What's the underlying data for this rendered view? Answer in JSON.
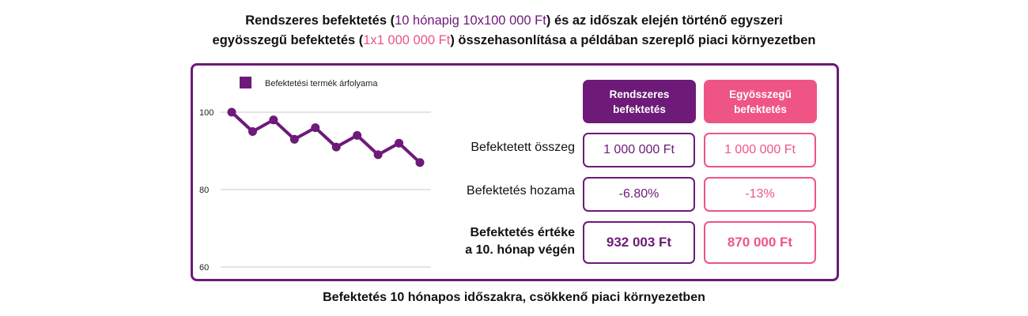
{
  "title": {
    "l1_a": "Rendszeres befektetés (",
    "l1_b": "10 hónapig 10x100 000 Ft",
    "l1_c": ") és az időszak elején történő egyszeri",
    "l2_a": "egyösszegű  befektetés (",
    "l2_b": "1x1 000 000 Ft",
    "l2_c": ") összehasonlítása a példában szereplő piaci környezetben"
  },
  "caption": "Befektetés 10 hónapos időszakra, csökkenő piaci környezetben",
  "colors": {
    "purple": "#6d1a78",
    "pink": "#ee5585",
    "grid": "#c8c8c8"
  },
  "chart_data": {
    "type": "line",
    "legend": "Befektetési termék árfolyama",
    "x": [
      1,
      2,
      3,
      4,
      5,
      6,
      7,
      8,
      9,
      10
    ],
    "series": [
      {
        "name": "Befektetési termék árfolyama",
        "values": [
          100,
          95,
          98,
          93,
          96,
          91,
          94,
          89,
          92,
          87
        ]
      }
    ],
    "ylim": [
      60,
      100
    ],
    "yticks": [
      100,
      80,
      60
    ],
    "grid": true,
    "legend_position": "top-left"
  },
  "table": {
    "headers": {
      "regular": "Rendszeres befektetés",
      "lump": "Egyösszegű befektetés"
    },
    "rows": [
      {
        "label": "Befektetett összeg",
        "regular": "1 000 000 Ft",
        "lump": "1 000 000 Ft"
      },
      {
        "label": "Befektetés hozama",
        "regular": "-6.80%",
        "lump": "-13%"
      },
      {
        "label_1": "Befektetés értéke",
        "label_2": "a 10. hónap végén",
        "regular": "932 003 Ft",
        "lump": "870 000 Ft"
      }
    ]
  }
}
